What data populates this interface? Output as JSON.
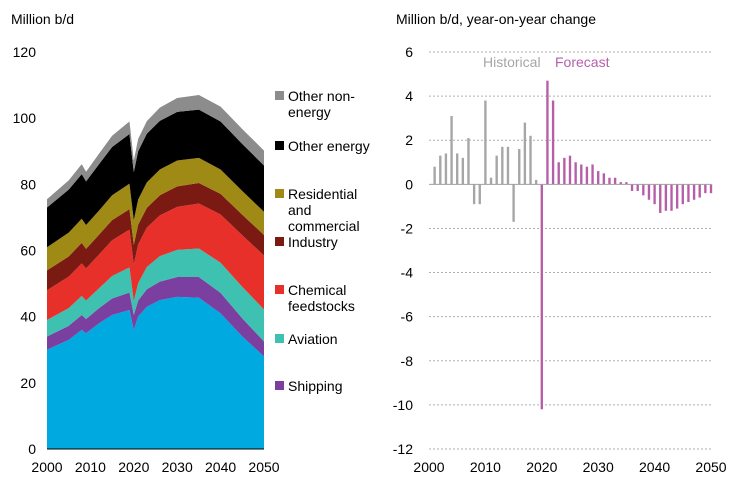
{
  "chart_data": [
    {
      "type": "area",
      "stacked": true,
      "ylabel": "Million b/d",
      "xlim": [
        2000,
        2050
      ],
      "ylim": [
        0,
        120
      ],
      "yticks": [
        0,
        20,
        40,
        60,
        80,
        100,
        120
      ],
      "xticks": [
        2000,
        2010,
        2020,
        2030,
        2040,
        2050
      ],
      "grid": false,
      "legend_position": "right",
      "x": [
        2000,
        2005,
        2008,
        2009,
        2012,
        2015,
        2019,
        2020,
        2021,
        2023,
        2026,
        2030,
        2035,
        2040,
        2045,
        2050
      ],
      "series": [
        {
          "name": "Shipping",
          "color": "#7b3fa0",
          "values": [
            4,
            4.2,
            4.5,
            4.3,
            4.6,
            5,
            5.3,
            4.5,
            4.9,
            5.3,
            5.6,
            6,
            6.3,
            6.2,
            5.5,
            4.5
          ]
        },
        {
          "name": "Aviation",
          "color": "#3ec1b0",
          "values": [
            5,
            5.4,
            5.8,
            5.6,
            6,
            6.8,
            7.6,
            4.2,
            5.2,
            6.7,
            7.7,
            8.2,
            8.6,
            9.1,
            9.5,
            9.7
          ]
        },
        {
          "name": "Chemical feedstocks",
          "color": "#e8302a",
          "values": [
            9,
            9.5,
            9.8,
            9.7,
            10.2,
            10.8,
            11.4,
            11.1,
            11.7,
            11.9,
            12.3,
            13,
            13.6,
            14.6,
            15.6,
            16.3
          ]
        },
        {
          "name": "Industry",
          "color": "#7a1a12",
          "values": [
            6,
            6.1,
            6.2,
            5.9,
            6,
            6.1,
            6.2,
            5.9,
            6,
            6,
            6.1,
            6.2,
            6.2,
            6.2,
            6.2,
            6.2
          ]
        },
        {
          "name": "Residential and commercial",
          "color": "#9e8a15",
          "values": [
            7,
            7.2,
            7.3,
            7.2,
            7.3,
            7.5,
            7.7,
            7.5,
            7.6,
            7.7,
            7.8,
            7.8,
            7.6,
            7.4,
            7.2,
            7
          ]
        },
        {
          "name": "Other energy",
          "color": "#000000",
          "values": [
            12,
            13,
            13.5,
            13.2,
            14,
            14.6,
            15,
            14.5,
            14.6,
            14.7,
            14.7,
            14.7,
            14.6,
            14.5,
            14.2,
            14
          ]
        },
        {
          "name": "Other non-energy",
          "color": "#8c8c8c",
          "values": [
            2.5,
            2.8,
            3,
            2.9,
            3.2,
            3.4,
            3.8,
            3.5,
            3.7,
            3.8,
            4,
            4.2,
            4.4,
            4.5,
            4.5,
            4.5
          ]
        }
      ],
      "transport_road": {
        "color": "#00a9e0",
        "values": [
          30,
          33,
          36,
          35,
          38,
          40.5,
          42,
          36,
          40,
          43,
          45,
          46,
          45.7,
          41,
          34,
          28
        ]
      }
    },
    {
      "type": "bar",
      "ylabel": "Million b/d, year-on-year change",
      "xlim": [
        2000,
        2050
      ],
      "ylim": [
        -12,
        6
      ],
      "yticks": [
        -12,
        -10,
        -8,
        -6,
        -4,
        -2,
        0,
        2,
        4,
        6
      ],
      "xticks": [
        2000,
        2010,
        2020,
        2030,
        2040,
        2050
      ],
      "grid": true,
      "annotations": [
        "Historical",
        "Forecast"
      ],
      "series": [
        {
          "name": "Historical",
          "color": "#a6a6a6",
          "x": [
            2001,
            2002,
            2003,
            2004,
            2005,
            2006,
            2007,
            2008,
            2009,
            2010,
            2011,
            2012,
            2013,
            2014,
            2015,
            2016,
            2017,
            2018,
            2019
          ],
          "values": [
            0.8,
            1.3,
            1.4,
            3.1,
            1.4,
            1.2,
            2.1,
            -0.9,
            -0.9,
            3.8,
            0.3,
            1.3,
            1.7,
            1.7,
            -1.7,
            1.6,
            2.8,
            2.2,
            0.2
          ]
        },
        {
          "name": "Forecast",
          "color": "#b65fa8",
          "x": [
            2020,
            2021,
            2022,
            2023,
            2024,
            2025,
            2026,
            2027,
            2028,
            2029,
            2030,
            2031,
            2032,
            2033,
            2034,
            2035,
            2036,
            2037,
            2038,
            2039,
            2040,
            2041,
            2042,
            2043,
            2044,
            2045,
            2046,
            2047,
            2048,
            2049,
            2050
          ],
          "values": [
            -10.2,
            4.7,
            3.8,
            1,
            1.2,
            1.3,
            1,
            0.9,
            0.8,
            0.9,
            0.6,
            0.5,
            0.3,
            0.3,
            0.1,
            0.1,
            -0.3,
            -0.3,
            -0.5,
            -0.7,
            -0.9,
            -1.3,
            -1.2,
            -1.2,
            -1.1,
            -0.9,
            -0.8,
            -0.7,
            -0.6,
            -0.4,
            -0.4
          ]
        }
      ]
    }
  ]
}
